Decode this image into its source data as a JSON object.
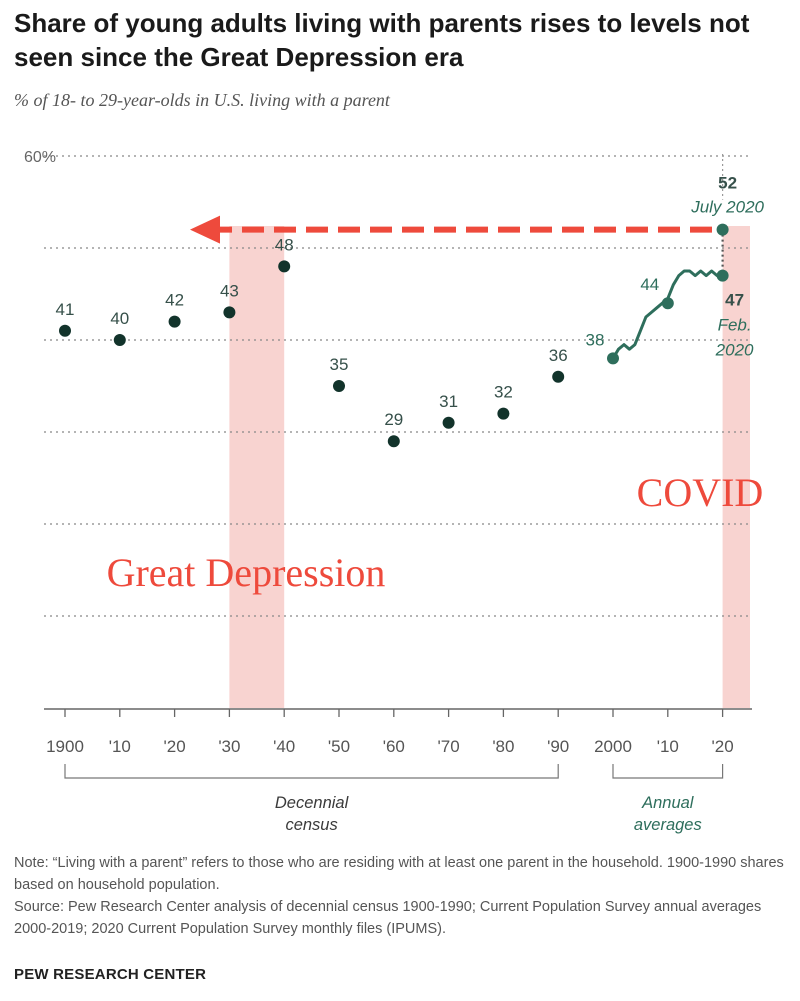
{
  "colors": {
    "dot": "#12332b",
    "annual": "#2e6e5c",
    "label": "#36504a",
    "shade": "#f8d3d0",
    "annotation": "#ee4a3c",
    "grid": "#888888",
    "axis": "#666666"
  },
  "chart_data": {
    "type": "line",
    "title": "Share of young adults living with parents rises to levels not seen since the Great Depression era",
    "subtitle": "% of 18- to 29-year-olds in U.S. living with a parent",
    "ylim": [
      0,
      60
    ],
    "y_tick_label": "60%",
    "x_tick_labels": [
      {
        "year": 1900,
        "label": "1900"
      },
      {
        "year": 1910,
        "label": "'10"
      },
      {
        "year": 1920,
        "label": "'20"
      },
      {
        "year": 1930,
        "label": "'30"
      },
      {
        "year": 1940,
        "label": "'40"
      },
      {
        "year": 1950,
        "label": "'50"
      },
      {
        "year": 1960,
        "label": "'60"
      },
      {
        "year": 1970,
        "label": "'70"
      },
      {
        "year": 1980,
        "label": "'80"
      },
      {
        "year": 1990,
        "label": "'90"
      },
      {
        "year": 2000,
        "label": "2000"
      },
      {
        "year": 2010,
        "label": "'10"
      },
      {
        "year": 2020,
        "label": "'20"
      }
    ],
    "decennial": [
      {
        "x": 1900,
        "y": 41,
        "label": "41"
      },
      {
        "x": 1910,
        "y": 40,
        "label": "40"
      },
      {
        "x": 1920,
        "y": 42,
        "label": "42"
      },
      {
        "x": 1930,
        "y": 43,
        "label": "43"
      },
      {
        "x": 1940,
        "y": 48,
        "label": "48"
      },
      {
        "x": 1950,
        "y": 35,
        "label": "35"
      },
      {
        "x": 1960,
        "y": 29,
        "label": "29"
      },
      {
        "x": 1970,
        "y": 31,
        "label": "31"
      },
      {
        "x": 1980,
        "y": 32,
        "label": "32"
      },
      {
        "x": 1990,
        "y": 36,
        "label": "36"
      }
    ],
    "annual_series": {
      "name": "Annual averages",
      "x": [
        2000,
        2001,
        2002,
        2003,
        2004,
        2005,
        2006,
        2007,
        2008,
        2009,
        2010,
        2011,
        2012,
        2013,
        2014,
        2015,
        2016,
        2017,
        2018,
        2019,
        2020
      ],
      "y": [
        38,
        39,
        39.5,
        39,
        39.5,
        41,
        42.5,
        43,
        43.5,
        44,
        44.5,
        46,
        47,
        47.5,
        47.5,
        47,
        47.5,
        47,
        47.5,
        47,
        47
      ]
    },
    "labeled_points": [
      {
        "x": 2000,
        "y": 38,
        "label": "38"
      },
      {
        "x": 2010,
        "y": 44,
        "label": "44"
      }
    ],
    "feb_2020": {
      "value": 47,
      "label": "47",
      "date_line1": "Feb.",
      "date_line2": "2020"
    },
    "july_2020": {
      "value": 52,
      "label": "52",
      "date": "July 2020"
    },
    "shaded_periods": [
      {
        "from": 1930,
        "to": 1940,
        "label": "Great Depression"
      },
      {
        "from": 2020,
        "to": 2025,
        "label": "COVID"
      }
    ],
    "brackets": [
      {
        "from": 1900,
        "to": 1990,
        "line1": "Decennial",
        "line2": "census"
      },
      {
        "from": 2000,
        "to": 2020,
        "line1": "Annual",
        "line2": "averages"
      }
    ]
  },
  "note": {
    "note_text": "Note: “Living with a parent” refers to those who are residing with at least one parent in the household. 1900-1990 shares based on household population.",
    "source_text": "Source: Pew Research Center analysis of decennial census 1900-1990; Current Population Survey annual averages 2000-2019; 2020 Current Population Survey monthly files (IPUMS)."
  },
  "footer": "PEW RESEARCH CENTER"
}
